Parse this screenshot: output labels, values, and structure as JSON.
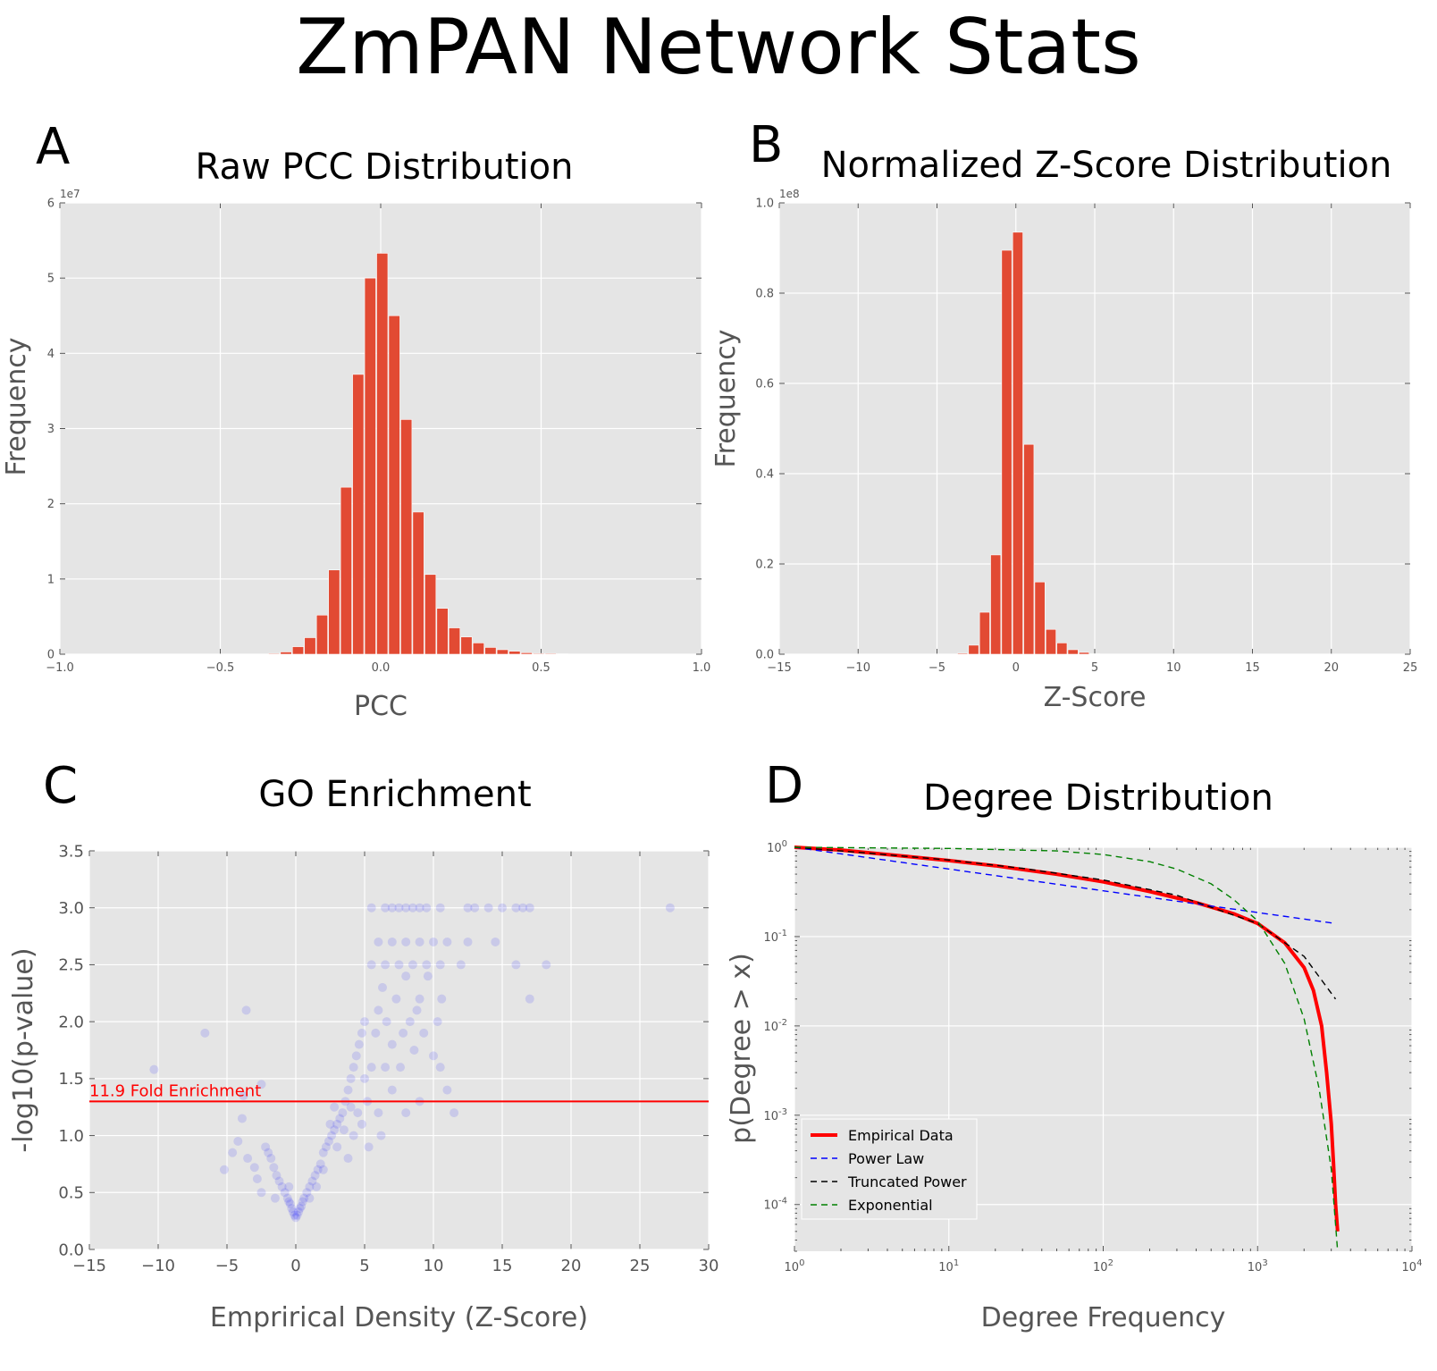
{
  "figure_title": "ZmPAN Network Stats",
  "chart_data": [
    {
      "panel_letter": "A",
      "type": "bar",
      "title": "Raw PCC Distribution",
      "xlabel": "PCC",
      "ylabel": "Frequency",
      "y_offset_label": "1e7",
      "xlim": [
        -1.0,
        1.0
      ],
      "ylim": [
        0,
        6
      ],
      "xticks": [
        -1.0,
        -0.5,
        0.0,
        0.5,
        1.0
      ],
      "xtick_labels": [
        "−1.0",
        "−0.5",
        "0.0",
        "0.5",
        "1.0"
      ],
      "yticks": [
        0,
        1,
        2,
        3,
        4,
        5,
        6
      ],
      "ytick_labels": [
        "0",
        "1",
        "2",
        "3",
        "4",
        "5",
        "6"
      ],
      "bin_width": 0.0375,
      "bin_left_edges": [
        -0.35,
        -0.3125,
        -0.275,
        -0.2375,
        -0.2,
        -0.1625,
        -0.125,
        -0.0875,
        -0.05,
        -0.0125,
        0.025,
        0.0625,
        0.1,
        0.1375,
        0.175,
        0.2125,
        0.25,
        0.2875,
        0.325,
        0.3625,
        0.4,
        0.4375,
        0.475,
        0.5125,
        0.55
      ],
      "values": [
        0.01,
        0.03,
        0.1,
        0.22,
        0.52,
        1.12,
        2.22,
        3.72,
        5.0,
        5.33,
        4.5,
        3.12,
        1.89,
        1.06,
        0.61,
        0.35,
        0.23,
        0.15,
        0.09,
        0.06,
        0.04,
        0.02,
        0.01,
        0.01,
        0.005
      ],
      "bar_color": "#e24a33",
      "grid": true
    },
    {
      "panel_letter": "B",
      "type": "bar",
      "title": "Normalized Z-Score Distribution",
      "xlabel": "Z-Score",
      "ylabel": "Frequency",
      "y_offset_label": "1e8",
      "xlim": [
        -15,
        25
      ],
      "ylim": [
        0,
        1.0
      ],
      "xticks": [
        -15,
        -10,
        -5,
        0,
        5,
        10,
        15,
        20,
        25
      ],
      "xtick_labels": [
        "−15",
        "−10",
        "−5",
        "0",
        "5",
        "10",
        "15",
        "20",
        "25"
      ],
      "yticks": [
        0.0,
        0.2,
        0.4,
        0.6,
        0.8,
        1.0
      ],
      "ytick_labels": [
        "0.0",
        "0.2",
        "0.4",
        "0.6",
        "0.8",
        "1.0"
      ],
      "bin_width": 0.7,
      "bin_left_edges": [
        -3.7,
        -3.0,
        -2.3,
        -1.6,
        -0.9,
        -0.2,
        0.5,
        1.2,
        1.9,
        2.6,
        3.3,
        4.0,
        4.7
      ],
      "values": [
        0.002,
        0.02,
        0.093,
        0.22,
        0.895,
        0.935,
        0.465,
        0.16,
        0.055,
        0.025,
        0.01,
        0.004,
        0.001
      ],
      "bar_color": "#e24a33",
      "grid": true
    },
    {
      "panel_letter": "C",
      "type": "scatter",
      "title": "GO Enrichment",
      "xlabel": "Emprirical Density (Z-Score)",
      "ylabel": "-log10(p-value)",
      "xlim": [
        -15,
        30
      ],
      "ylim": [
        0,
        3.5
      ],
      "xticks": [
        -15,
        -10,
        -5,
        0,
        5,
        10,
        15,
        20,
        25,
        30
      ],
      "xtick_labels": [
        "−15",
        "−10",
        "−5",
        "0",
        "5",
        "10",
        "15",
        "20",
        "25",
        "30"
      ],
      "yticks": [
        0.0,
        0.5,
        1.0,
        1.5,
        2.0,
        2.5,
        3.0,
        3.5
      ],
      "ytick_labels": [
        "0.0",
        "0.5",
        "1.0",
        "1.5",
        "2.0",
        "2.5",
        "3.0",
        "3.5"
      ],
      "threshold": {
        "y": 1.3,
        "label": "11.9 Fold Enrichment",
        "color": "#ff0000"
      },
      "point_color": "#0000ff",
      "point_alpha": 0.07,
      "points": [
        [
          -10.3,
          1.58
        ],
        [
          -6.6,
          1.9
        ],
        [
          -5.2,
          0.7
        ],
        [
          -4.6,
          0.85
        ],
        [
          -4.2,
          0.95
        ],
        [
          -3.6,
          2.1
        ],
        [
          -3.8,
          1.35
        ],
        [
          -3.9,
          1.15
        ],
        [
          -3.5,
          0.8
        ],
        [
          -3.0,
          0.72
        ],
        [
          -2.8,
          0.62
        ],
        [
          -2.5,
          1.45
        ],
        [
          -2.2,
          0.9
        ],
        [
          -2.0,
          0.85
        ],
        [
          -1.8,
          0.8
        ],
        [
          -1.6,
          0.72
        ],
        [
          -1.4,
          0.65
        ],
        [
          -1.2,
          0.6
        ],
        [
          -1.0,
          0.55
        ],
        [
          -0.8,
          0.5
        ],
        [
          -0.6,
          0.45
        ],
        [
          -0.5,
          0.42
        ],
        [
          -0.4,
          0.4
        ],
        [
          -0.3,
          0.36
        ],
        [
          -0.2,
          0.33
        ],
        [
          -0.1,
          0.3
        ],
        [
          0.0,
          0.28
        ],
        [
          0.1,
          0.3
        ],
        [
          0.2,
          0.33
        ],
        [
          0.3,
          0.36
        ],
        [
          0.4,
          0.38
        ],
        [
          0.5,
          0.42
        ],
        [
          0.6,
          0.45
        ],
        [
          0.8,
          0.5
        ],
        [
          1.0,
          0.55
        ],
        [
          1.2,
          0.6
        ],
        [
          1.4,
          0.65
        ],
        [
          1.6,
          0.7
        ],
        [
          1.8,
          0.75
        ],
        [
          2.0,
          0.85
        ],
        [
          2.2,
          0.9
        ],
        [
          2.4,
          0.95
        ],
        [
          2.6,
          1.0
        ],
        [
          2.8,
          1.05
        ],
        [
          3.0,
          1.1
        ],
        [
          3.2,
          1.15
        ],
        [
          3.4,
          1.2
        ],
        [
          3.6,
          1.3
        ],
        [
          3.8,
          1.4
        ],
        [
          4.0,
          1.5
        ],
        [
          4.2,
          1.6
        ],
        [
          4.4,
          1.7
        ],
        [
          4.6,
          1.8
        ],
        [
          4.8,
          1.9
        ],
        [
          5.0,
          2.0
        ],
        [
          4.5,
          1.2
        ],
        [
          2.5,
          1.1
        ],
        [
          3.0,
          0.9
        ],
        [
          2.0,
          0.7
        ],
        [
          1.5,
          0.55
        ],
        [
          -1.5,
          0.45
        ],
        [
          -2.5,
          0.5
        ],
        [
          1.0,
          0.45
        ],
        [
          -0.5,
          0.55
        ],
        [
          3.5,
          1.05
        ],
        [
          4.0,
          1.25
        ],
        [
          5.2,
          1.3
        ],
        [
          5.5,
          1.6
        ],
        [
          5.8,
          1.9
        ],
        [
          6.0,
          2.1
        ],
        [
          6.3,
          2.3
        ],
        [
          6.6,
          2.0
        ],
        [
          7.0,
          1.8
        ],
        [
          7.3,
          2.2
        ],
        [
          7.6,
          1.6
        ],
        [
          8.0,
          2.4
        ],
        [
          8.3,
          2.0
        ],
        [
          8.6,
          1.75
        ],
        [
          9.0,
          2.2
        ],
        [
          9.3,
          1.9
        ],
        [
          9.6,
          2.4
        ],
        [
          10.0,
          1.7
        ],
        [
          10.3,
          2.0
        ],
        [
          10.6,
          2.2
        ],
        [
          11.0,
          1.4
        ],
        [
          5.5,
          2.5
        ],
        [
          6.0,
          2.7
        ],
        [
          6.5,
          2.5
        ],
        [
          7.0,
          2.7
        ],
        [
          7.5,
          2.5
        ],
        [
          8.0,
          2.7
        ],
        [
          8.5,
          2.5
        ],
        [
          9.0,
          2.7
        ],
        [
          9.5,
          2.5
        ],
        [
          10.0,
          2.7
        ],
        [
          10.5,
          2.5
        ],
        [
          11.0,
          2.7
        ],
        [
          12.0,
          2.5
        ],
        [
          12.5,
          2.7
        ],
        [
          14.5,
          2.7
        ],
        [
          16.0,
          2.5
        ],
        [
          17.0,
          2.2
        ],
        [
          18.2,
          2.5
        ],
        [
          5.5,
          3.0
        ],
        [
          6.5,
          3.0
        ],
        [
          7.0,
          3.0
        ],
        [
          7.5,
          3.0
        ],
        [
          8.0,
          3.0
        ],
        [
          8.5,
          3.0
        ],
        [
          9.0,
          3.0
        ],
        [
          9.5,
          3.0
        ],
        [
          10.5,
          3.0
        ],
        [
          12.5,
          3.0
        ],
        [
          13.0,
          3.0
        ],
        [
          14.0,
          3.0
        ],
        [
          15.0,
          3.0
        ],
        [
          16.0,
          3.0
        ],
        [
          16.5,
          3.0
        ],
        [
          17.0,
          3.0
        ],
        [
          27.2,
          3.0
        ],
        [
          5.0,
          1.5
        ],
        [
          6.0,
          1.2
        ],
        [
          7.0,
          1.4
        ],
        [
          8.0,
          1.2
        ],
        [
          9.0,
          1.3
        ],
        [
          6.5,
          1.6
        ],
        [
          7.8,
          1.9
        ],
        [
          8.8,
          2.1
        ],
        [
          10.5,
          1.6
        ],
        [
          11.5,
          1.2
        ],
        [
          4.8,
          1.1
        ],
        [
          5.3,
          0.9
        ],
        [
          6.2,
          1.0
        ],
        [
          4.2,
          1.0
        ],
        [
          3.8,
          0.8
        ],
        [
          2.8,
          1.25
        ]
      ],
      "grid": true
    },
    {
      "panel_letter": "D",
      "type": "line",
      "title": "Degree Distribution",
      "xlabel": "Degree Frequency",
      "ylabel": "p(Degree > x)",
      "xscale": "log",
      "yscale": "log",
      "xlim": [
        1,
        10000
      ],
      "ylim": [
        3e-05,
        1
      ],
      "x_major_exponents": [
        0,
        1,
        2,
        3,
        4
      ],
      "y_major_exponents": [
        0,
        -1,
        -2,
        -3,
        -4
      ],
      "legend_position": "lower-left",
      "series": [
        {
          "name": "Empirical Data",
          "color": "#ff0000",
          "dash": "solid",
          "x": [
            1,
            2,
            5,
            10,
            20,
            50,
            100,
            200,
            400,
            700,
            1000,
            1500,
            2000,
            2300,
            2600,
            2800,
            3000,
            3100,
            3200,
            3300
          ],
          "y": [
            1.0,
            0.93,
            0.8,
            0.71,
            0.62,
            0.5,
            0.41,
            0.32,
            0.24,
            0.18,
            0.14,
            0.085,
            0.045,
            0.025,
            0.01,
            0.003,
            0.0008,
            0.0003,
            0.0001,
            5e-05
          ]
        },
        {
          "name": "Power Law",
          "color": "#0000ff",
          "dash": "dashed",
          "x": [
            1,
            3200
          ],
          "y": [
            1.0,
            0.14
          ]
        },
        {
          "name": "Truncated Power",
          "color": "#000000",
          "dash": "dashed",
          "x": [
            1,
            3,
            10,
            30,
            100,
            300,
            1000,
            2000,
            3200
          ],
          "y": [
            1.0,
            0.86,
            0.72,
            0.58,
            0.43,
            0.29,
            0.14,
            0.06,
            0.02
          ]
        },
        {
          "name": "Exponential",
          "color": "#008000",
          "dash": "dashed",
          "x": [
            1,
            10,
            50,
            100,
            200,
            300,
            500,
            700,
            1000,
            1500,
            2000,
            2500,
            3000,
            3300
          ],
          "y": [
            1.0,
            0.97,
            0.91,
            0.83,
            0.69,
            0.57,
            0.39,
            0.26,
            0.15,
            0.05,
            0.012,
            0.002,
            0.00025,
            3e-05
          ]
        }
      ],
      "grid": true
    }
  ]
}
